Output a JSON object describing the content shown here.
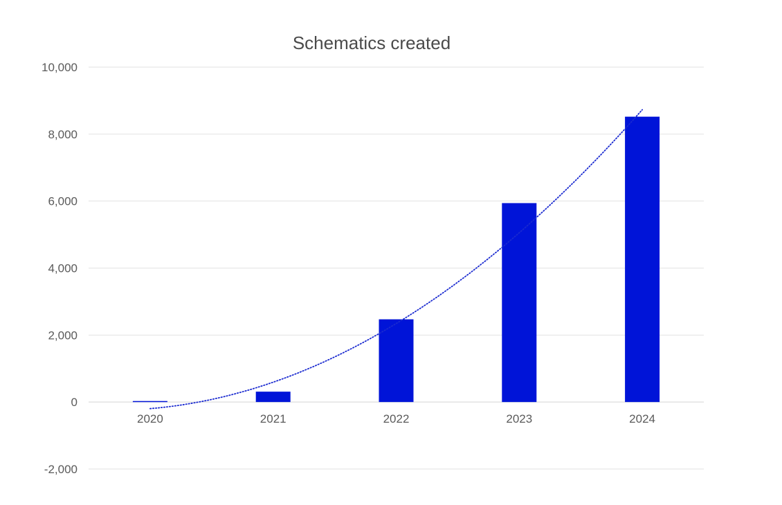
{
  "chart_data": {
    "type": "bar",
    "title": "Schematics created",
    "xlabel": "",
    "ylabel": "",
    "categories": [
      "2020",
      "2021",
      "2022",
      "2023",
      "2024"
    ],
    "series": [
      {
        "values": [
          30,
          310,
          2470,
          5940,
          8520
        ],
        "color": "#0014d8"
      }
    ],
    "trendline": {
      "type": "polynomial",
      "style": "dotted",
      "color": "#1a2ad0",
      "values": [
        -250,
        660,
        2460,
        4830,
        8820
      ]
    },
    "ylim": [
      -2000,
      10000
    ],
    "yticks": [
      -2000,
      0,
      2000,
      4000,
      6000,
      8000,
      10000
    ],
    "ytick_labels": [
      "-2,000",
      "0",
      "2,000",
      "4,000",
      "6,000",
      "8,000",
      "10,000"
    ],
    "grid": true,
    "legend": "none"
  }
}
